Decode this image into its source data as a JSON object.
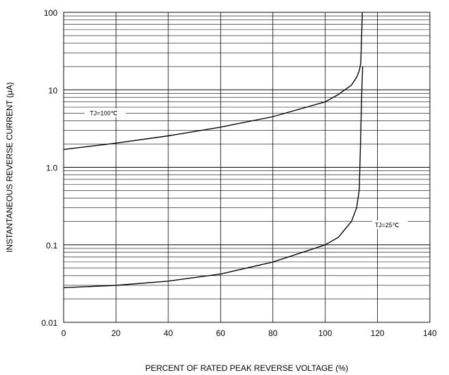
{
  "chart_data": {
    "type": "line",
    "xlabel": "PERCENT OF RATED PEAK REVERSE VOLTAGE (%)",
    "ylabel": "INSTANTANEOUS REVERSE CURRENT (μA)",
    "xlim": [
      0,
      140
    ],
    "ylim": [
      0.01,
      100
    ],
    "yscale": "log",
    "grid": true,
    "x_ticks": [
      0,
      20,
      40,
      60,
      80,
      100,
      120,
      140
    ],
    "x_tick_labels": [
      "0",
      "20",
      "40",
      "60",
      "80",
      "100",
      "120",
      "140"
    ],
    "y_ticks": [
      0.01,
      0.1,
      1,
      10,
      100
    ],
    "y_tick_labels": [
      "0.01",
      "0.1",
      "1.0",
      "10",
      "100"
    ],
    "series": [
      {
        "name": "TJ=100℃",
        "x": [
          0,
          20,
          40,
          60,
          80,
          100,
          105,
          110,
          112,
          113,
          113.6,
          114,
          114.2
        ],
        "y": [
          1.7,
          2.05,
          2.55,
          3.3,
          4.5,
          7.0,
          8.7,
          11.5,
          14.5,
          17.5,
          22,
          60,
          100
        ]
      },
      {
        "name": "TJ=25℃",
        "x": [
          0,
          20,
          40,
          60,
          80,
          100,
          105,
          110,
          112,
          113,
          113.5,
          114,
          114.3
        ],
        "y": [
          0.028,
          0.03,
          0.034,
          0.042,
          0.06,
          0.1,
          0.125,
          0.2,
          0.3,
          0.5,
          2,
          10,
          20
        ]
      }
    ],
    "annotations": [
      {
        "text": "TJ=100℃",
        "series": 0
      },
      {
        "text": "TJ=25℃",
        "series": 1
      }
    ]
  }
}
